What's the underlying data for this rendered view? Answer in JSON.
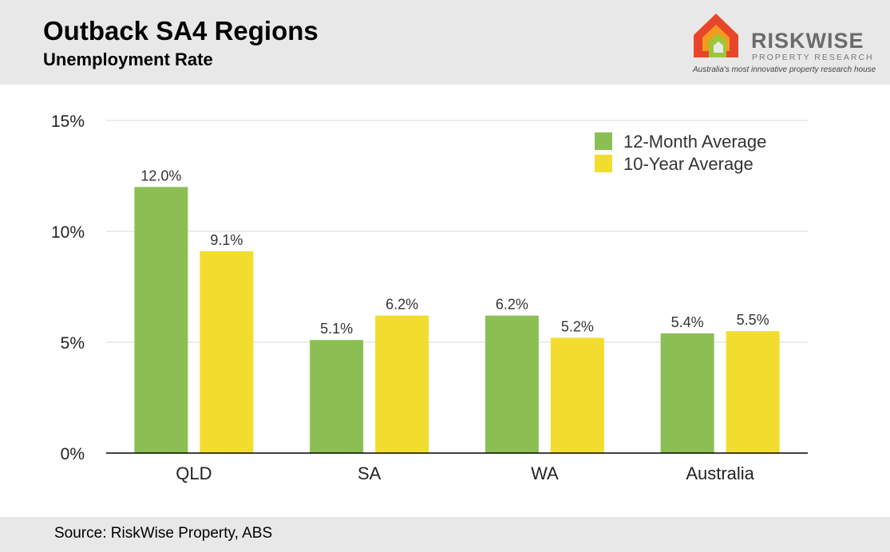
{
  "header": {
    "title": "Outback SA4 Regions",
    "subtitle": "Unemployment Rate"
  },
  "logo": {
    "name": "RISKWISE",
    "sub": "PROPERTY RESEARCH",
    "tagline": "Australia's most innovative property research house"
  },
  "footer": {
    "source": "Source: RiskWise Property, ABS"
  },
  "colors": {
    "series_12m": "#8bbf53",
    "series_10y": "#f2dd2e",
    "grid": "#d9d9d9",
    "axis": "#000000"
  },
  "chart_data": {
    "type": "bar",
    "categories": [
      "QLD",
      "SA",
      "WA",
      "Australia"
    ],
    "series": [
      {
        "name": "12-Month Average",
        "values": [
          12.0,
          5.1,
          6.2,
          5.4
        ]
      },
      {
        "name": "10-Year Average",
        "values": [
          9.1,
          6.2,
          5.2,
          5.5
        ]
      }
    ],
    "value_labels": [
      [
        "12.0%",
        "5.1%",
        "6.2%",
        "5.4%"
      ],
      [
        "9.1%",
        "6.2%",
        "5.2%",
        "5.5%"
      ]
    ],
    "yticks": [
      0,
      5,
      10,
      15
    ],
    "ytick_labels": [
      "0%",
      "5%",
      "10%",
      "15%"
    ],
    "ylim": [
      0,
      15
    ],
    "grid": true,
    "legend_position": "top-right"
  }
}
